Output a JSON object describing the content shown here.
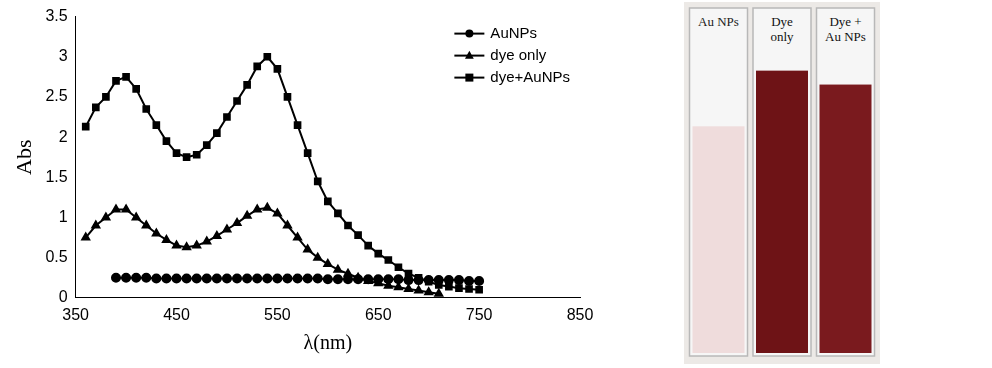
{
  "chart_data": {
    "type": "line",
    "x_label": "λ(nm)",
    "y_label": "Abs",
    "x": [
      360,
      370,
      380,
      390,
      400,
      410,
      420,
      430,
      440,
      450,
      460,
      470,
      480,
      490,
      500,
      510,
      520,
      530,
      540,
      550,
      560,
      570,
      580,
      590,
      600,
      610,
      620,
      630,
      640,
      650,
      660,
      670,
      680,
      690,
      700,
      710,
      720,
      730,
      740,
      750
    ],
    "series": [
      {
        "name": "AuNPs",
        "color": "#000000",
        "marker": "circle",
        "values": [
          null,
          null,
          null,
          0.25,
          0.25,
          0.25,
          0.25,
          0.24,
          0.24,
          0.24,
          0.24,
          0.24,
          0.24,
          0.24,
          0.24,
          0.24,
          0.24,
          0.24,
          0.24,
          0.24,
          0.24,
          0.24,
          0.24,
          0.24,
          0.23,
          0.23,
          0.23,
          0.23,
          0.23,
          0.23,
          0.23,
          0.23,
          0.22,
          0.22,
          0.22,
          0.22,
          0.22,
          0.22,
          0.21,
          0.21
        ]
      },
      {
        "name": "dye only",
        "color": "#000000",
        "marker": "triangle",
        "values": [
          0.75,
          0.9,
          1.0,
          1.1,
          1.1,
          1.0,
          0.9,
          0.8,
          0.72,
          0.65,
          0.63,
          0.65,
          0.7,
          0.77,
          0.85,
          0.93,
          1.02,
          1.1,
          1.12,
          1.05,
          0.9,
          0.75,
          0.6,
          0.5,
          0.42,
          0.35,
          0.3,
          0.25,
          0.21,
          0.18,
          0.15,
          0.13,
          0.11,
          0.09,
          0.07,
          0.05,
          null,
          null,
          null,
          null
        ]
      },
      {
        "name": "dye+AuNPs",
        "color": "#000000",
        "marker": "square",
        "values": [
          2.13,
          2.37,
          2.5,
          2.7,
          2.75,
          2.6,
          2.35,
          2.15,
          1.95,
          1.8,
          1.75,
          1.78,
          1.9,
          2.05,
          2.25,
          2.45,
          2.65,
          2.88,
          3.0,
          2.85,
          2.5,
          2.15,
          1.8,
          1.45,
          1.2,
          1.05,
          0.9,
          0.78,
          0.65,
          0.55,
          0.47,
          0.38,
          0.3,
          0.25,
          0.2,
          0.16,
          0.14,
          0.12,
          0.11,
          0.1
        ]
      }
    ],
    "xlim": [
      350,
      850
    ],
    "xticks": [
      350,
      450,
      550,
      650,
      750,
      850
    ],
    "ylim": [
      0,
      3.5
    ],
    "yticks": [
      0,
      0.5,
      1,
      1.5,
      2,
      2.5,
      3,
      3.5
    ],
    "grid": false,
    "legend": "upper right"
  },
  "photo": {
    "labels": [
      "Au NPs",
      "Dye only",
      "Dye + Au NPs"
    ]
  }
}
